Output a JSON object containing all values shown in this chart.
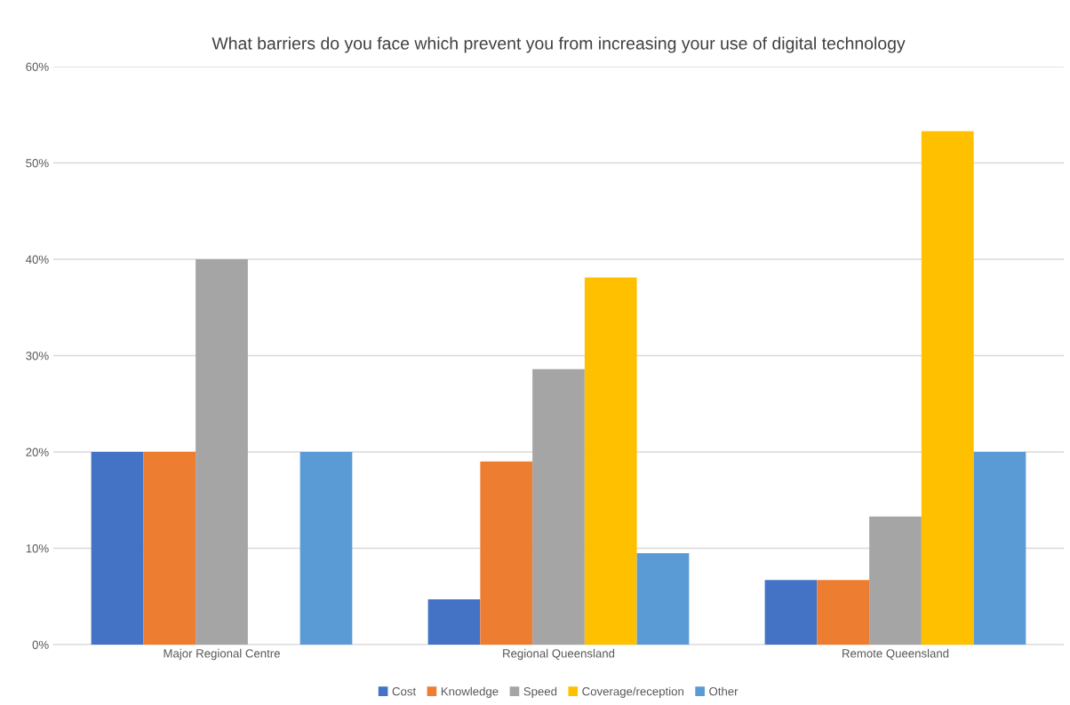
{
  "chart_data": {
    "type": "bar",
    "title": "What barriers do you face which prevent you from increasing your use of digital technology",
    "categories": [
      "Major Regional Centre",
      "Regional Queensland",
      "Remote Queensland"
    ],
    "series": [
      {
        "name": "Cost",
        "color": "#4472c4",
        "values": [
          20,
          4.7,
          6.7
        ]
      },
      {
        "name": "Knowledge",
        "color": "#ed7d31",
        "values": [
          20,
          19.0,
          6.7
        ]
      },
      {
        "name": "Speed",
        "color": "#a5a5a5",
        "values": [
          40,
          28.6,
          13.3
        ]
      },
      {
        "name": "Coverage/reception",
        "color": "#ffc000",
        "values": [
          0,
          38.1,
          53.3
        ]
      },
      {
        "name": "Other",
        "color": "#5b9bd5",
        "values": [
          20,
          9.5,
          20
        ]
      }
    ],
    "ylim": [
      0,
      60
    ],
    "yticks": [
      {
        "value": 0,
        "label": "0%"
      },
      {
        "value": 10,
        "label": "10%"
      },
      {
        "value": 20,
        "label": "20%"
      },
      {
        "value": 30,
        "label": "30%"
      },
      {
        "value": 40,
        "label": "40%"
      },
      {
        "value": 50,
        "label": "50%"
      },
      {
        "value": 60,
        "label": "60%"
      }
    ],
    "grid": "y",
    "legend": "bottom"
  }
}
